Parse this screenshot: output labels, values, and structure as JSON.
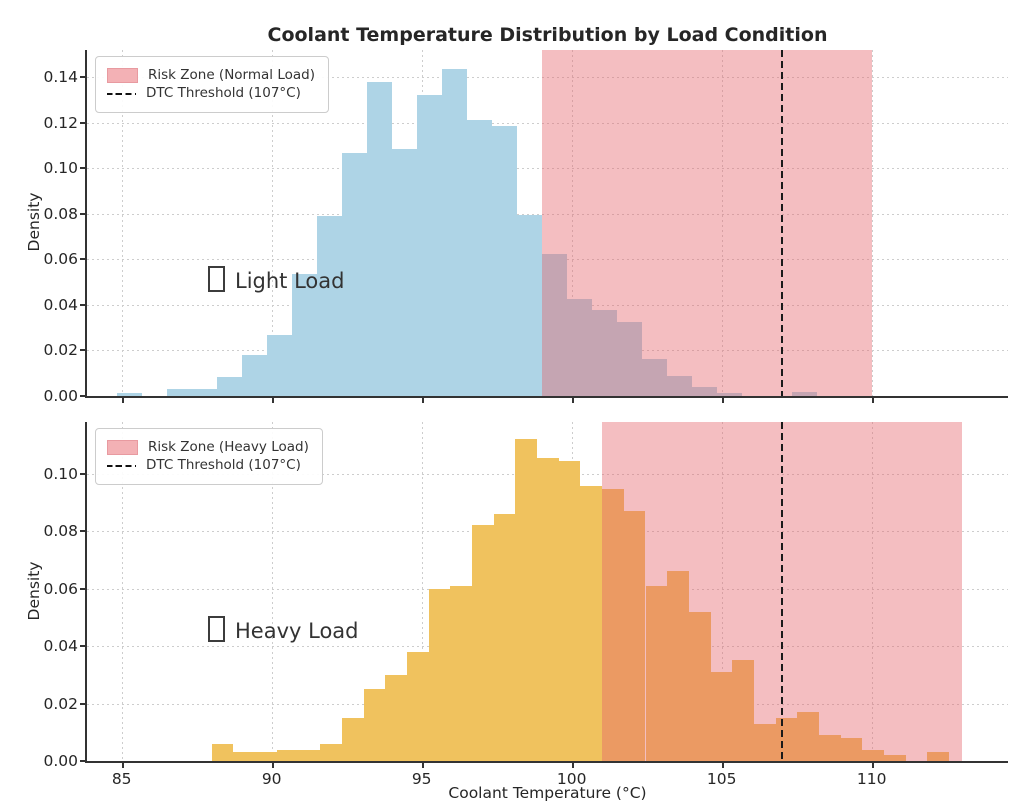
{
  "figure": {
    "title": "Coolant Temperature Distribution by Load Condition",
    "xlabel": "Coolant Temperature (°C)",
    "ylabel": "Density"
  },
  "colors": {
    "normal_load_bar": "#aed4e6",
    "heavy_load_bar": "#f0c25e",
    "risk_zone_overlay": "rgba(229,100,108,0.42)",
    "risk_zone_legend_patch": "#f3b1b5",
    "threshold_line": "#1a1a1a",
    "grid": "#cdcdcd",
    "spine": "#333333",
    "text": "#262626",
    "bar_overlap_normal": "#b3a3ad",
    "bar_overlap_heavy": "#ef9449"
  },
  "chart_data": [
    {
      "type": "bar",
      "subtype": "histogram",
      "panel": "top",
      "condition": "Light Load",
      "annotation": "Light Load",
      "annotation_missing_glyph": true,
      "ylabel": "Density",
      "legend": [
        {
          "label": "Risk Zone (Normal Load)",
          "swatch": "patch"
        },
        {
          "label": "DTC Threshold (107°C)",
          "swatch": "dashed-line"
        }
      ],
      "x_ticks": [
        85,
        90,
        95,
        100,
        105,
        110
      ],
      "x_tick_labels_visible": false,
      "y_ticks": [
        0.0,
        0.02,
        0.04,
        0.06,
        0.08,
        0.1,
        0.12,
        0.14
      ],
      "y_tick_labels": [
        "0.00",
        "0.02",
        "0.04",
        "0.06",
        "0.08",
        "0.10",
        "0.12",
        "0.14"
      ],
      "xlim": [
        83.85,
        114.55
      ],
      "ylim": [
        0,
        0.152
      ],
      "grid": true,
      "legend_position": "upper-left",
      "risk_zone_c": [
        99.0,
        110.0
      ],
      "threshold_c": 107,
      "bins": {
        "start_c": 84.85,
        "width_c": 0.8333,
        "densities": [
          0.0013,
          0,
          0.0032,
          0.0032,
          0.0084,
          0.0181,
          0.0266,
          0.0535,
          0.079,
          0.1066,
          0.138,
          0.1084,
          0.1323,
          0.1437,
          0.1211,
          0.1187,
          0.0797,
          0.0625,
          0.0427,
          0.0376,
          0.0324,
          0.0164,
          0.009,
          0.0039,
          0.0014,
          0,
          0,
          0.0017
        ]
      }
    },
    {
      "type": "bar",
      "subtype": "histogram",
      "panel": "bottom",
      "condition": "Heavy Load",
      "annotation": "Heavy Load",
      "annotation_missing_glyph": true,
      "ylabel": "Density",
      "xlabel": "Coolant Temperature (°C)",
      "legend": [
        {
          "label": "Risk Zone (Heavy Load)",
          "swatch": "patch"
        },
        {
          "label": "DTC Threshold (107°C)",
          "swatch": "dashed-line"
        }
      ],
      "x_ticks": [
        85,
        90,
        95,
        100,
        105,
        110
      ],
      "x_tick_labels_visible": true,
      "y_ticks": [
        0.0,
        0.02,
        0.04,
        0.06,
        0.08,
        0.1
      ],
      "y_tick_labels": [
        "0.00",
        "0.02",
        "0.04",
        "0.06",
        "0.08",
        "0.10"
      ],
      "xlim": [
        83.85,
        114.55
      ],
      "ylim": [
        0,
        0.118
      ],
      "grid": true,
      "legend_position": "upper-left",
      "risk_zone_c": [
        101.0,
        113.0
      ],
      "threshold_c": 107,
      "bins": {
        "start_c": 88.0,
        "width_c": 0.723,
        "densities": [
          0.006,
          0.003,
          0.003,
          0.004,
          0.004,
          0.006,
          0.015,
          0.025,
          0.03,
          0.038,
          0.06,
          0.061,
          0.082,
          0.086,
          0.112,
          0.1055,
          0.1045,
          0.0957,
          0.0948,
          0.087,
          0.061,
          0.066,
          0.052,
          0.031,
          0.035,
          0.013,
          0.015,
          0.017,
          0.009,
          0.008,
          0.004,
          0.002,
          0,
          0.003
        ]
      }
    }
  ]
}
